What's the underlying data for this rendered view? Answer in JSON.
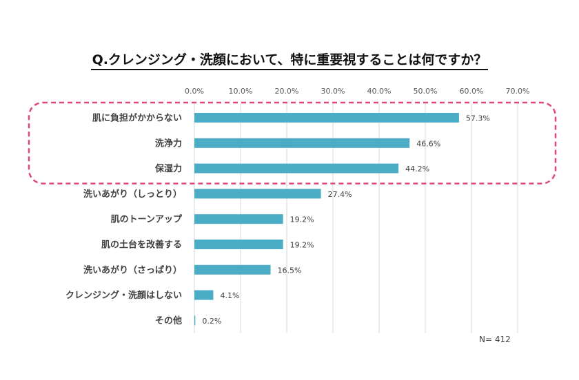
{
  "chart_data": {
    "type": "bar",
    "orientation": "horizontal",
    "title": "Q.クレンジング・洗顔において、特に重要視することは何ですか？",
    "categories": [
      "肌に負担がかからない",
      "洗浄力",
      "保湿力",
      "洗いあがり（しっとり）",
      "肌のトーンアップ",
      "肌の土台を改善する",
      "洗いあがり（さっぱり）",
      "クレンジング・洗顔はしない",
      "その他"
    ],
    "values": [
      57.3,
      46.6,
      44.2,
      27.4,
      19.2,
      19.2,
      16.5,
      4.1,
      0.2
    ],
    "value_labels": [
      "57.3%",
      "46.6%",
      "44.2%",
      "27.4%",
      "19.2%",
      "19.2%",
      "16.5%",
      "4.1%",
      "0.2%"
    ],
    "xlim": [
      0,
      70
    ],
    "x_ticks": [
      "0.0%",
      "10.0%",
      "20.0%",
      "30.0%",
      "40.0%",
      "50.0%",
      "60.0%",
      "70.0%"
    ],
    "x_axis_position": "top",
    "grid": true,
    "highlight": {
      "categories": [
        0,
        1,
        2
      ],
      "style": "dashed-rounded-box"
    },
    "note": "N= 412",
    "colors": {
      "bar": "#4BACC6",
      "highlight": "#E0457B",
      "grid": "#D9D9D9"
    }
  }
}
